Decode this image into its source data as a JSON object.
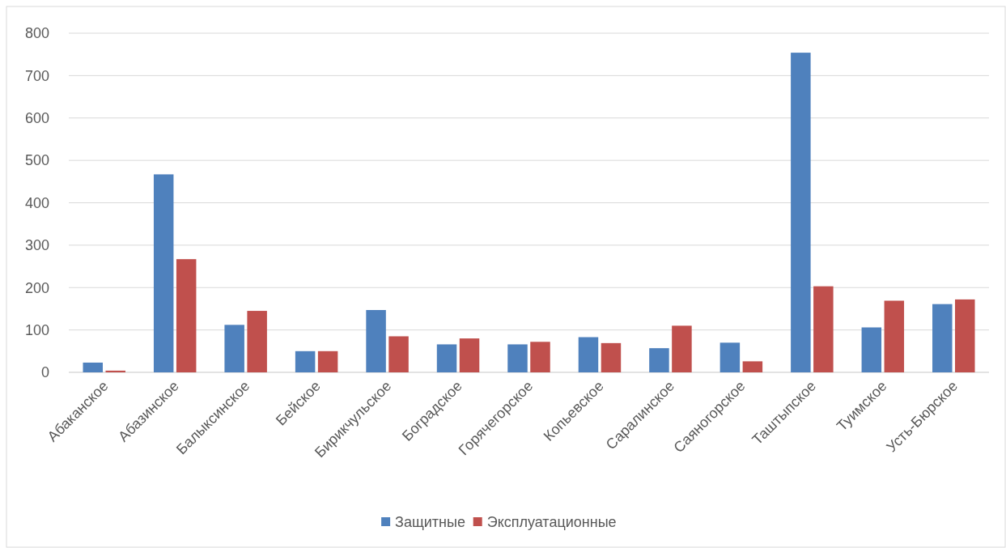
{
  "chart_data": {
    "type": "bar",
    "categories": [
      "Абаканское",
      "Абазинское",
      "Балыксинское",
      "Бейское",
      "Бирикчульское",
      "Боградское",
      "Горячегорское",
      "Копьевское",
      "Саралинское",
      "Саяногорское",
      "Таштыпское",
      "Туимское",
      "Усть-Бюрское"
    ],
    "series": [
      {
        "name": "Защитные",
        "color": "#4f81bd",
        "values": [
          23,
          467,
          112,
          50,
          147,
          66,
          66,
          83,
          57,
          70,
          754,
          106,
          161
        ]
      },
      {
        "name": "Эксплуатационные",
        "color": "#c0504d",
        "values": [
          4,
          267,
          145,
          50,
          85,
          80,
          72,
          69,
          110,
          26,
          203,
          169,
          172
        ]
      }
    ],
    "ylim": [
      0,
      800
    ],
    "yticks": [
      0,
      100,
      200,
      300,
      400,
      500,
      600,
      700,
      800
    ],
    "grid": "y",
    "legend": "bottom"
  }
}
